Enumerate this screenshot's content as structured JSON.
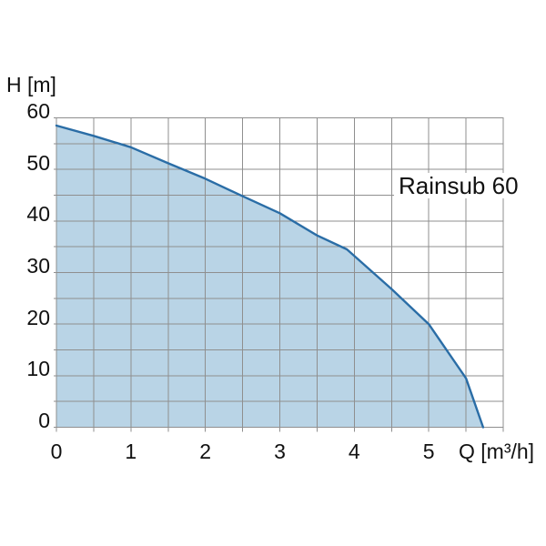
{
  "chart_data": {
    "type": "area",
    "series_label": "Rainsub 60",
    "x_axis": {
      "label": "Q [m³/h]",
      "min": 0,
      "max": 6,
      "minor_step": 0.5,
      "major_tick_values": [
        0,
        1,
        2,
        3,
        4,
        5
      ],
      "major_tick_labels": [
        "0",
        "1",
        "2",
        "3",
        "4",
        "5"
      ]
    },
    "y_axis": {
      "label": "H [m]",
      "min": 0,
      "max": 60,
      "minor_step": 5,
      "major_tick_values": [
        60,
        50,
        40,
        30,
        20,
        10,
        0
      ],
      "major_tick_labels": [
        "60",
        "50",
        "40",
        "30",
        "20",
        "10",
        "0"
      ]
    },
    "grid": true,
    "points": [
      [
        0,
        58.5
      ],
      [
        0.5,
        56.5
      ],
      [
        1.0,
        54.3
      ],
      [
        1.5,
        51.2
      ],
      [
        2.0,
        48.2
      ],
      [
        2.5,
        44.8
      ],
      [
        3.0,
        41.5
      ],
      [
        3.5,
        37.2
      ],
      [
        3.9,
        34.5
      ],
      [
        4.5,
        26.8
      ],
      [
        5.0,
        20.0
      ],
      [
        5.5,
        9.5
      ],
      [
        5.73,
        0
      ]
    ],
    "colors": {
      "curve": "#2a6da6",
      "fill": "#b9d4e6",
      "grid": "#8f8f8f",
      "text": "#111111",
      "background": "#ffffff"
    }
  }
}
